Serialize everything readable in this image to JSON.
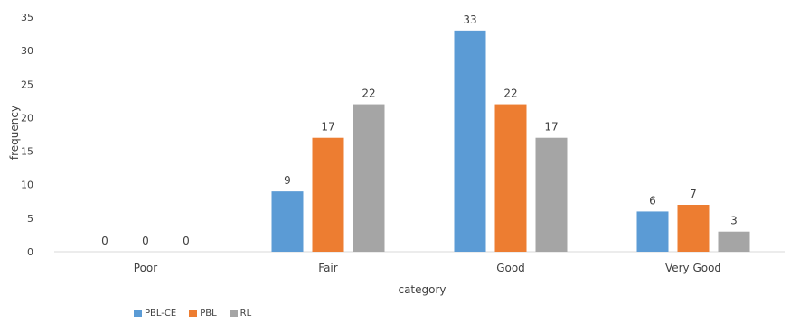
{
  "chart_data": {
    "type": "bar",
    "categories": [
      "Poor",
      "Fair",
      "Good",
      "Very Good"
    ],
    "series": [
      {
        "name": "PBL-CE",
        "values": [
          0,
          9,
          33,
          6
        ],
        "color": "#5b9bd5"
      },
      {
        "name": "PBL",
        "values": [
          0,
          17,
          22,
          7
        ],
        "color": "#ed7d31"
      },
      {
        "name": "RL",
        "values": [
          0,
          22,
          17,
          3
        ],
        "color": "#a5a5a5"
      }
    ],
    "xlabel": "category",
    "ylabel": "frequency",
    "ylim": [
      0,
      35
    ],
    "yticks": [
      0,
      5,
      10,
      15,
      20,
      25,
      30,
      35
    ],
    "data_labels": true,
    "grid": false,
    "legend_position": "bottom-left"
  }
}
